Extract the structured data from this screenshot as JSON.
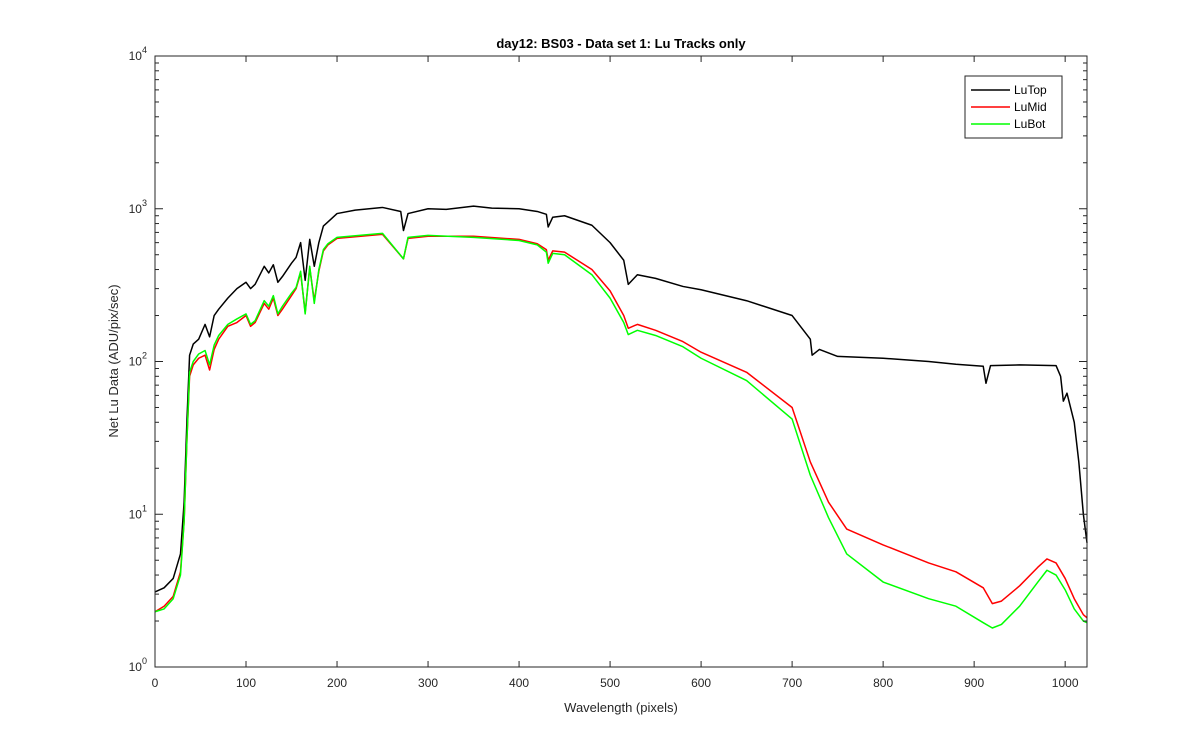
{
  "chart_data": {
    "type": "line",
    "title": "day12: BS03 - Data set 1: Lu Tracks only",
    "xlabel": "Wavelength (pixels)",
    "ylabel": "Net Lu Data (ADU/pix/sec)",
    "xlim": [
      0,
      1024
    ],
    "ylim": [
      1,
      10000
    ],
    "yscale": "log",
    "grid": false,
    "legend_position": "top-right",
    "xticks": [
      0,
      100,
      200,
      300,
      400,
      500,
      600,
      700,
      800,
      900,
      1000
    ],
    "xtick_labels": [
      "0",
      "100",
      "200",
      "300",
      "400",
      "500",
      "600",
      "700",
      "800",
      "900",
      "1000"
    ],
    "yticks": [
      1,
      10,
      100,
      1000,
      10000
    ],
    "ytick_labels": [
      {
        "base": "10",
        "exp": "0"
      },
      {
        "base": "10",
        "exp": "1"
      },
      {
        "base": "10",
        "exp": "2"
      },
      {
        "base": "10",
        "exp": "3"
      },
      {
        "base": "10",
        "exp": "4"
      }
    ],
    "series": [
      {
        "name": "LuTop",
        "color": "#000000",
        "points": [
          [
            0,
            3.1
          ],
          [
            10,
            3.3
          ],
          [
            20,
            3.8
          ],
          [
            28,
            5.5
          ],
          [
            32,
            12
          ],
          [
            35,
            40
          ],
          [
            38,
            110
          ],
          [
            42,
            130
          ],
          [
            48,
            140
          ],
          [
            55,
            175
          ],
          [
            60,
            145
          ],
          [
            65,
            200
          ],
          [
            70,
            220
          ],
          [
            80,
            260
          ],
          [
            90,
            300
          ],
          [
            100,
            330
          ],
          [
            105,
            300
          ],
          [
            110,
            320
          ],
          [
            120,
            420
          ],
          [
            125,
            380
          ],
          [
            130,
            430
          ],
          [
            135,
            330
          ],
          [
            140,
            360
          ],
          [
            150,
            440
          ],
          [
            155,
            480
          ],
          [
            160,
            600
          ],
          [
            165,
            340
          ],
          [
            170,
            630
          ],
          [
            175,
            420
          ],
          [
            180,
            600
          ],
          [
            185,
            770
          ],
          [
            190,
            820
          ],
          [
            200,
            930
          ],
          [
            220,
            980
          ],
          [
            250,
            1020
          ],
          [
            270,
            960
          ],
          [
            273,
            720
          ],
          [
            278,
            930
          ],
          [
            300,
            1000
          ],
          [
            320,
            990
          ],
          [
            350,
            1040
          ],
          [
            370,
            1010
          ],
          [
            400,
            1000
          ],
          [
            420,
            960
          ],
          [
            430,
            920
          ],
          [
            432,
            760
          ],
          [
            437,
            880
          ],
          [
            450,
            900
          ],
          [
            480,
            780
          ],
          [
            500,
            600
          ],
          [
            515,
            460
          ],
          [
            520,
            320
          ],
          [
            530,
            370
          ],
          [
            550,
            350
          ],
          [
            580,
            310
          ],
          [
            600,
            295
          ],
          [
            650,
            250
          ],
          [
            700,
            200
          ],
          [
            720,
            140
          ],
          [
            722,
            110
          ],
          [
            730,
            120
          ],
          [
            750,
            108
          ],
          [
            800,
            105
          ],
          [
            850,
            100
          ],
          [
            880,
            96
          ],
          [
            910,
            93
          ],
          [
            913,
            72
          ],
          [
            918,
            94
          ],
          [
            950,
            95
          ],
          [
            990,
            94
          ],
          [
            995,
            80
          ],
          [
            998,
            55
          ],
          [
            1002,
            62
          ],
          [
            1010,
            40
          ],
          [
            1015,
            22
          ],
          [
            1020,
            10
          ],
          [
            1024,
            6.5
          ]
        ]
      },
      {
        "name": "LuMid",
        "color": "#ff0000",
        "points": [
          [
            0,
            2.3
          ],
          [
            10,
            2.5
          ],
          [
            20,
            2.9
          ],
          [
            28,
            4.2
          ],
          [
            32,
            9
          ],
          [
            35,
            30
          ],
          [
            38,
            80
          ],
          [
            42,
            95
          ],
          [
            48,
            105
          ],
          [
            55,
            110
          ],
          [
            60,
            88
          ],
          [
            65,
            120
          ],
          [
            70,
            140
          ],
          [
            80,
            170
          ],
          [
            90,
            180
          ],
          [
            100,
            200
          ],
          [
            105,
            170
          ],
          [
            110,
            180
          ],
          [
            120,
            240
          ],
          [
            125,
            220
          ],
          [
            130,
            260
          ],
          [
            135,
            200
          ],
          [
            140,
            220
          ],
          [
            150,
            270
          ],
          [
            155,
            300
          ],
          [
            160,
            380
          ],
          [
            165,
            210
          ],
          [
            170,
            410
          ],
          [
            175,
            250
          ],
          [
            180,
            390
          ],
          [
            185,
            530
          ],
          [
            190,
            580
          ],
          [
            200,
            640
          ],
          [
            250,
            680
          ],
          [
            273,
            470
          ],
          [
            278,
            640
          ],
          [
            300,
            660
          ],
          [
            350,
            660
          ],
          [
            400,
            630
          ],
          [
            420,
            590
          ],
          [
            430,
            540
          ],
          [
            432,
            460
          ],
          [
            437,
            530
          ],
          [
            450,
            520
          ],
          [
            480,
            400
          ],
          [
            500,
            290
          ],
          [
            515,
            200
          ],
          [
            520,
            165
          ],
          [
            530,
            175
          ],
          [
            550,
            160
          ],
          [
            580,
            135
          ],
          [
            600,
            115
          ],
          [
            650,
            85
          ],
          [
            700,
            50
          ],
          [
            720,
            22
          ],
          [
            740,
            12
          ],
          [
            760,
            8
          ],
          [
            800,
            6.3
          ],
          [
            850,
            4.8
          ],
          [
            880,
            4.2
          ],
          [
            910,
            3.3
          ],
          [
            920,
            2.6
          ],
          [
            930,
            2.7
          ],
          [
            950,
            3.4
          ],
          [
            970,
            4.5
          ],
          [
            980,
            5.1
          ],
          [
            990,
            4.8
          ],
          [
            1000,
            3.8
          ],
          [
            1010,
            2.8
          ],
          [
            1020,
            2.2
          ],
          [
            1024,
            2.1
          ]
        ]
      },
      {
        "name": "LuBot",
        "color": "#00ff00",
        "points": [
          [
            0,
            2.3
          ],
          [
            10,
            2.4
          ],
          [
            20,
            2.8
          ],
          [
            28,
            4.0
          ],
          [
            32,
            9
          ],
          [
            35,
            30
          ],
          [
            38,
            85
          ],
          [
            42,
            100
          ],
          [
            48,
            112
          ],
          [
            55,
            118
          ],
          [
            60,
            95
          ],
          [
            65,
            128
          ],
          [
            70,
            148
          ],
          [
            80,
            175
          ],
          [
            90,
            190
          ],
          [
            100,
            205
          ],
          [
            105,
            175
          ],
          [
            110,
            185
          ],
          [
            120,
            250
          ],
          [
            125,
            230
          ],
          [
            130,
            270
          ],
          [
            135,
            205
          ],
          [
            140,
            230
          ],
          [
            150,
            280
          ],
          [
            155,
            305
          ],
          [
            160,
            390
          ],
          [
            165,
            205
          ],
          [
            170,
            420
          ],
          [
            175,
            240
          ],
          [
            180,
            400
          ],
          [
            185,
            540
          ],
          [
            190,
            590
          ],
          [
            200,
            650
          ],
          [
            250,
            690
          ],
          [
            273,
            470
          ],
          [
            278,
            650
          ],
          [
            300,
            670
          ],
          [
            350,
            650
          ],
          [
            400,
            620
          ],
          [
            420,
            580
          ],
          [
            430,
            520
          ],
          [
            432,
            440
          ],
          [
            437,
            510
          ],
          [
            450,
            500
          ],
          [
            480,
            370
          ],
          [
            500,
            260
          ],
          [
            515,
            180
          ],
          [
            520,
            150
          ],
          [
            530,
            160
          ],
          [
            550,
            148
          ],
          [
            580,
            125
          ],
          [
            600,
            105
          ],
          [
            650,
            75
          ],
          [
            700,
            42
          ],
          [
            720,
            18
          ],
          [
            740,
            9.5
          ],
          [
            760,
            5.5
          ],
          [
            800,
            3.6
          ],
          [
            850,
            2.8
          ],
          [
            880,
            2.5
          ],
          [
            910,
            1.95
          ],
          [
            920,
            1.8
          ],
          [
            930,
            1.9
          ],
          [
            950,
            2.5
          ],
          [
            970,
            3.6
          ],
          [
            980,
            4.3
          ],
          [
            990,
            4.0
          ],
          [
            1000,
            3.2
          ],
          [
            1010,
            2.4
          ],
          [
            1020,
            2.0
          ],
          [
            1024,
            1.95
          ]
        ]
      }
    ]
  }
}
